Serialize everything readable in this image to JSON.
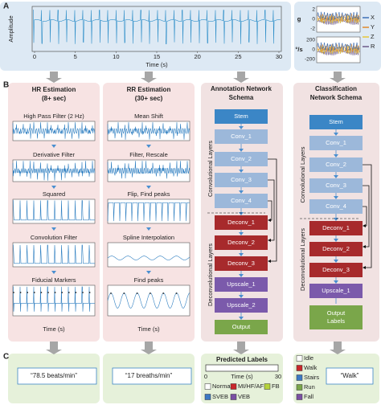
{
  "panel_labels": [
    "A",
    "B",
    "C"
  ],
  "panel_a": {
    "y_label": "Amplitude",
    "x_label": "Time (s)",
    "x_ticks": [
      "0",
      "5",
      "10",
      "15",
      "20",
      "25",
      "30"
    ],
    "imu": {
      "y_label_top": "g",
      "y_label_bottom": "°/s",
      "top_ticks": [
        "2",
        "0",
        "-2"
      ],
      "bottom_ticks": [
        "200",
        "0",
        "-200"
      ],
      "legend": [
        "X",
        "Y",
        "Z",
        "R"
      ]
    }
  },
  "hr": {
    "title": [
      "HR Estimation",
      "(8+ sec)"
    ],
    "steps": [
      "High Pass Filter (2 Hz)",
      "Derivative Filter",
      "Squared",
      "Convolution Filter",
      "Fiducial Markers"
    ],
    "x_label": "Time (s)",
    "result": "“78.5 beats/min”"
  },
  "rr": {
    "title": [
      "RR Estimation",
      "(30+ sec)"
    ],
    "steps": [
      "Mean Shift",
      "Filter, Rescale",
      "Flip, Find peaks",
      "Spline Interpolation",
      "Find peaks"
    ],
    "x_label": "Time (s)",
    "result": "“17 breaths/min”"
  },
  "annotation": {
    "title": [
      "Annotation Network",
      "Schema"
    ],
    "blocks": [
      "Stem",
      "Conv_1",
      "Conv_2",
      "Conv_3",
      "Conv_4",
      "Deconv_1",
      "Deconv_2",
      "Deconv_3",
      "Upscale_1",
      "Upscale_2",
      "Output"
    ],
    "conv_label": "Convolutional Layers",
    "deconv_label": "Deconvolutional Layers"
  },
  "classification": {
    "title": [
      "Classification",
      "Network Schema"
    ],
    "blocks": [
      "Stem",
      "Conv_1",
      "Conv_2",
      "Conv_3",
      "Conv_4",
      "Deconv_1",
      "Deconv_2",
      "Deconv_3",
      "Upscale_1"
    ],
    "output": [
      "Output",
      "Labels"
    ],
    "conv_label": "Convolutional Layers",
    "deconv_label": "Deconvolutional Layers"
  },
  "predicted": {
    "title": "Predicted Labels",
    "time_ticks": [
      "0",
      "30"
    ],
    "x_label": "Time (s)",
    "legend": [
      "Normal",
      "MI/HF/AF",
      "FB",
      "SVEB",
      "VEB"
    ]
  },
  "activity": {
    "legend": [
      "Idle",
      "Walk",
      "Stairs",
      "Run",
      "Fall"
    ],
    "result": "“Walk”"
  }
}
